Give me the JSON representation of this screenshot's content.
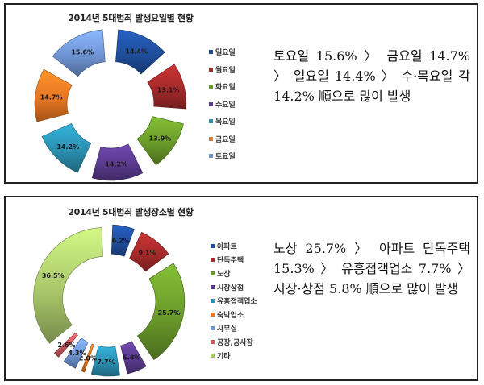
{
  "chart_data": [
    {
      "type": "pie",
      "subtype": "exploded-donut",
      "title": "2014년 5대범죄 발생요일별 현황",
      "categories": [
        "일요일",
        "월요일",
        "화요일",
        "수요일",
        "목요일",
        "금요일",
        "토요일"
      ],
      "values": [
        14.4,
        13.1,
        13.9,
        14.2,
        14.2,
        14.7,
        15.6
      ],
      "labels": [
        "14.4%",
        "13.1%",
        "13.9%",
        "14.2%",
        "14.2%",
        "14.7%",
        "15.6%"
      ],
      "colors": [
        "#1f4e9c",
        "#a52a2a",
        "#6a9a2a",
        "#5a3a8e",
        "#2a8fb0",
        "#e87722",
        "#6f94d3"
      ],
      "legend_position": "right",
      "unit": "%"
    },
    {
      "type": "pie",
      "subtype": "exploded-donut",
      "title": "2014년 5대범죄 발생장소별 현황",
      "categories": [
        "아파트",
        "단독주택",
        "노상",
        "시장상점",
        "유흥접객업소",
        "숙박업소",
        "사무실",
        "공장,공사장",
        "기타"
      ],
      "values": [
        6.2,
        9.1,
        25.7,
        5.8,
        7.7,
        2.0,
        4.3,
        2.6,
        36.5
      ],
      "labels": [
        "6.2%",
        "9.1%",
        "25.7%",
        "5.8%",
        "7.7%",
        "2.0%",
        "4.3%",
        "2.6%",
        "36.5%"
      ],
      "colors": [
        "#1f4e9c",
        "#a52a2a",
        "#6a9a2a",
        "#5a3a8e",
        "#2a8fb0",
        "#e87722",
        "#6f94d3",
        "#c9595f",
        "#a9c76a"
      ],
      "legend_position": "right",
      "unit": "%"
    }
  ],
  "panels": {
    "day": {
      "title": "2014년 5대범죄 발생요일별 현황",
      "legend": [
        {
          "label": "일요일",
          "color": "#1f4e9c"
        },
        {
          "label": "월요일",
          "color": "#a52a2a"
        },
        {
          "label": "화요일",
          "color": "#6a9a2a"
        },
        {
          "label": "수요일",
          "color": "#5a3a8e"
        },
        {
          "label": "목요일",
          "color": "#2a8fb0"
        },
        {
          "label": "금요일",
          "color": "#e87722"
        },
        {
          "label": "토요일",
          "color": "#6f94d3"
        }
      ],
      "summary": "토요일 15.6% 〉 금요일 14.7% 〉 일요일 14.4% 〉 수·목요일 각 14.2% 順으로 많이 발생"
    },
    "place": {
      "title": "2014년 5대범죄 발생장소별 현황",
      "legend": [
        {
          "label": "아파트",
          "color": "#1f4e9c"
        },
        {
          "label": "단독주택",
          "color": "#a52a2a"
        },
        {
          "label": "노상",
          "color": "#6a9a2a"
        },
        {
          "label": "시장상점",
          "color": "#5a3a8e"
        },
        {
          "label": "유흥접객업소",
          "color": "#2a8fb0"
        },
        {
          "label": "숙박업소",
          "color": "#e87722"
        },
        {
          "label": "사무실",
          "color": "#6f94d3"
        },
        {
          "label": "공장,공사장",
          "color": "#c9595f"
        },
        {
          "label": "기타",
          "color": "#a9c76a"
        }
      ],
      "summary": "노상 25.7% 〉 아파트 단독주택 15.3% 〉 유흥접객업소 7.7% 〉 시장·상점 5.8% 順으로 많이 발생"
    }
  }
}
